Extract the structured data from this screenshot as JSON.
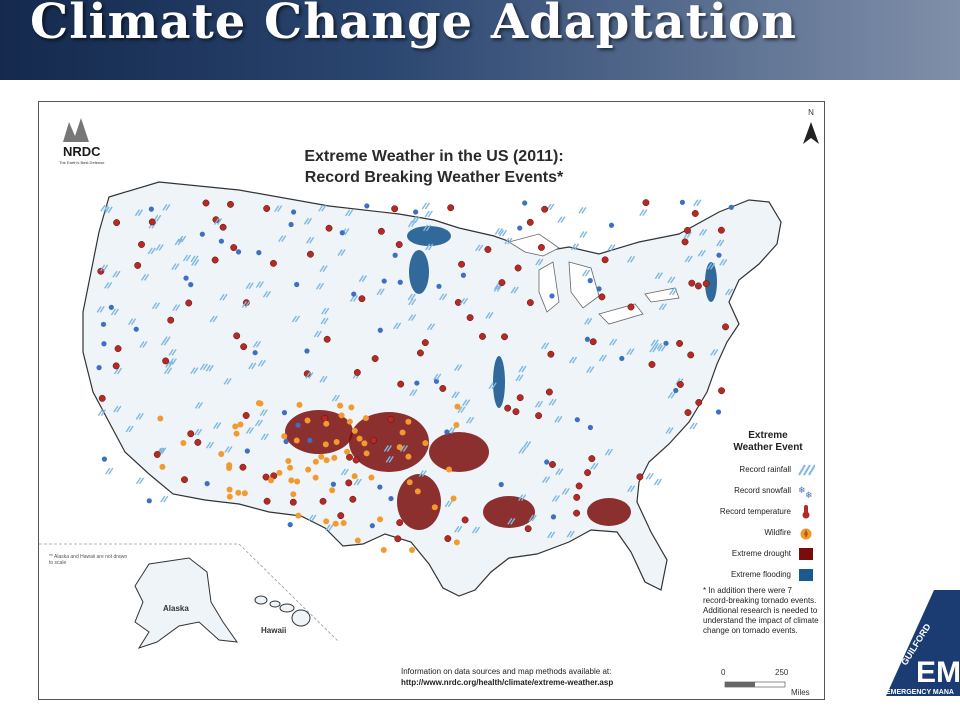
{
  "slide": {
    "title": "Climate Change Adaptation"
  },
  "map": {
    "logo_text": "NRDC",
    "logo_subtext": "The Earth's Best Defense",
    "title_line1": "Extreme Weather in the US (2011):",
    "title_line2": "Record Breaking Weather Events*",
    "north_label": "N",
    "alaska_hawaii_note": "** Alaska and Hawaii are not drawn to scale",
    "alaska_label": "Alaska",
    "hawaii_label": "Hawaii",
    "legend": {
      "title_line1": "Extreme",
      "title_line2": "Weather Event",
      "items": [
        {
          "label": "Record rainfall",
          "icon": "rain-icon",
          "color": "#7fb8e0"
        },
        {
          "label": "Record snowfall",
          "icon": "snowflake-icon",
          "color": "#3d6fc2"
        },
        {
          "label": "Record temperature",
          "icon": "thermometer-icon",
          "color": "#b52a25"
        },
        {
          "label": "Wildfire",
          "icon": "fire-icon",
          "color": "#f29a2e"
        },
        {
          "label": "Extreme drought",
          "icon": "square-icon",
          "color": "#7a0c0c"
        },
        {
          "label": "Extreme flooding",
          "icon": "square-icon",
          "color": "#1b5a8f"
        }
      ]
    },
    "footnote": "* In addition there were 7 record-breaking tornado events. Additional research is needed to understand the impact of climate change on tornado events.",
    "info_line1": "Information on data sources and map methods available at:",
    "info_url": "http://www.nrdc.org/health/climate/extreme-weather.asp",
    "scale": {
      "start": "0",
      "end": "250",
      "unit": "Miles"
    }
  },
  "badge": {
    "org_top": "GUILFORD",
    "initials": "EM",
    "org_bottom": "EMERGENCY MANA"
  }
}
